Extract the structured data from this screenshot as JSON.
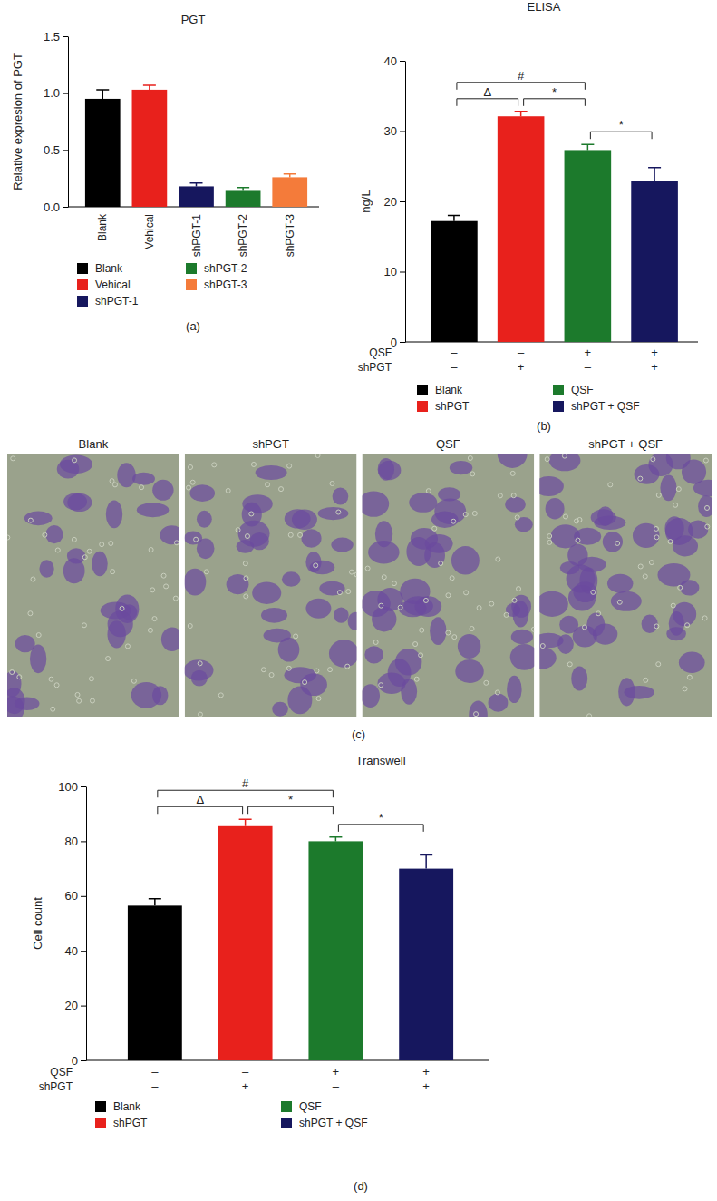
{
  "chart_data": [
    {
      "type": "bar",
      "title": "PGT",
      "y_label": "Relative expresion of PGT",
      "caption": "(a)",
      "categories": [
        "Blank",
        "Vehical",
        "shPGT-1",
        "shPGT-2",
        "shPGT-3"
      ],
      "values": [
        0.95,
        1.03,
        0.18,
        0.14,
        0.26
      ],
      "errors": [
        0.08,
        0.04,
        0.03,
        0.03,
        0.03
      ],
      "colors": [
        "#000000",
        "#e8211c",
        "#16175e",
        "#1c7a2c",
        "#f47b3a"
      ],
      "ylim": [
        0,
        1.5
      ],
      "yticks": [
        {
          "value": 0,
          "label": "0.0"
        },
        {
          "value": 0.5,
          "label": "0.5"
        },
        {
          "value": 1,
          "label": "1.0"
        },
        {
          "value": 1.5,
          "label": "1.5"
        }
      ],
      "legend": "bottom"
    },
    {
      "type": "bar",
      "title": "ELISA",
      "y_label": "ng/L",
      "caption": "(b)",
      "categories": [
        "Blank",
        "shPGT",
        "QSF",
        "shPGT + QSF"
      ],
      "values": [
        17.2,
        32.1,
        27.3,
        22.9
      ],
      "errors": [
        0.8,
        0.7,
        0.8,
        1.9
      ],
      "colors": [
        "#000000",
        "#e8211c",
        "#1c7a2c",
        "#16175e"
      ],
      "ylim": [
        0,
        40
      ],
      "yticks": [
        0,
        10,
        20,
        30,
        40
      ],
      "treatments": [
        {
          "label": "QSF",
          "signs": [
            "–",
            "–",
            "+",
            "+"
          ]
        },
        {
          "label": "shPGT",
          "signs": [
            "–",
            "+",
            "–",
            "+"
          ]
        }
      ],
      "significance": [
        {
          "pair": [
            "Blank",
            "shPGT"
          ],
          "label": "Δ"
        },
        {
          "pair": [
            "Blank",
            "QSF"
          ],
          "label": "#"
        },
        {
          "pair": [
            "shPGT",
            "QSF"
          ],
          "label": "*"
        },
        {
          "pair": [
            "QSF",
            "shPGT + QSF"
          ],
          "label": "*"
        }
      ],
      "legend": "bottom"
    },
    {
      "type": "bar",
      "title": "Transwell",
      "y_label": "Cell count",
      "caption": "(d)",
      "categories": [
        "Blank",
        "shPGT",
        "QSF",
        "shPGT + QSF"
      ],
      "values": [
        56.5,
        85.5,
        80,
        70
      ],
      "errors": [
        2.5,
        2.5,
        1.5,
        5
      ],
      "colors": [
        "#000000",
        "#e8211c",
        "#1c7a2c",
        "#16175e"
      ],
      "ylim": [
        0,
        100
      ],
      "yticks": [
        0,
        20,
        40,
        60,
        80,
        100
      ],
      "treatments": [
        {
          "label": "QSF",
          "signs": [
            "–",
            "–",
            "+",
            "+"
          ]
        },
        {
          "label": "shPGT",
          "signs": [
            "–",
            "+",
            "–",
            "+"
          ]
        }
      ],
      "significance": [
        {
          "pair": [
            "Blank",
            "shPGT"
          ],
          "label": "Δ"
        },
        {
          "pair": [
            "Blank",
            "QSF"
          ],
          "label": "#"
        },
        {
          "pair": [
            "shPGT",
            "QSF"
          ],
          "label": "*"
        },
        {
          "pair": [
            "QSF",
            "shPGT + QSF"
          ],
          "label": "*"
        }
      ],
      "legend": "bottom"
    }
  ],
  "images": {
    "caption": "(c)",
    "labels": [
      "Blank",
      "shPGT",
      "QSF",
      "shPGT + QSF"
    ]
  }
}
